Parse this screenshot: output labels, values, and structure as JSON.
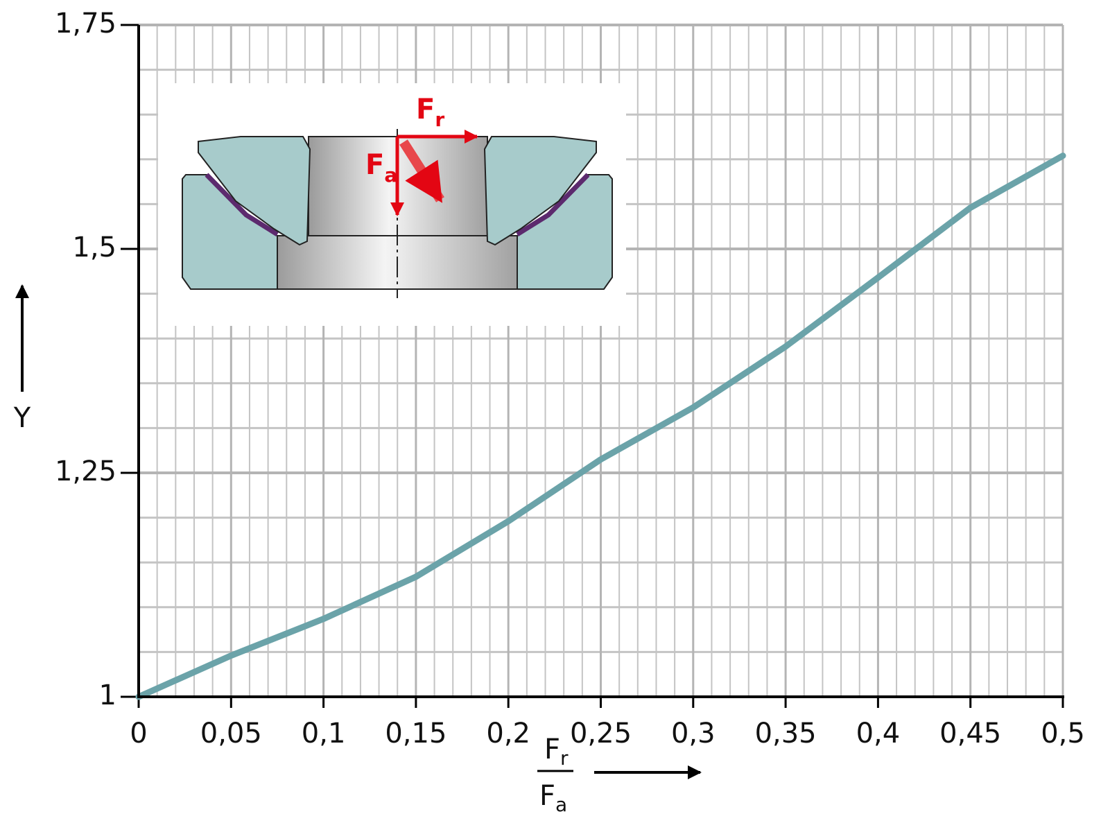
{
  "chart_data": {
    "type": "line",
    "ylabel": "Y",
    "xlabel": {
      "numerator": "F",
      "numerator_sub": "r",
      "denominator": "F",
      "denominator_sub": "a"
    },
    "inset_labels": [
      {
        "main": "F",
        "sub": "r"
      },
      {
        "main": "F",
        "sub": "a"
      }
    ],
    "x": [
      0,
      0.05,
      0.1,
      0.15,
      0.2,
      0.25,
      0.3,
      0.35,
      0.4,
      0.45,
      0.5
    ],
    "values": [
      1.0,
      1.046,
      1.087,
      1.134,
      1.196,
      1.265,
      1.323,
      1.391,
      1.468,
      1.546,
      1.604
    ],
    "color": "#6ba3a9",
    "xlim": [
      0,
      0.5
    ],
    "ylim": [
      1,
      1.75
    ],
    "xticks": [
      0,
      {
        "value": 0.05,
        "label": "0,05"
      },
      {
        "value": 0.1,
        "label": "0,1"
      },
      {
        "value": 0.15,
        "label": "0,15"
      },
      {
        "value": 0.2,
        "label": "0,2"
      },
      {
        "value": 0.25,
        "label": "0,25"
      },
      {
        "value": 0.3,
        "label": "0,3"
      },
      {
        "value": 0.35,
        "label": "0,35"
      },
      {
        "value": 0.4,
        "label": "0,4"
      },
      {
        "value": 0.45,
        "label": "0,45"
      },
      {
        "value": 0.5,
        "label": "0,5"
      }
    ],
    "yticks": [
      1,
      {
        "value": 1.25,
        "label": "1,25"
      },
      {
        "value": 1.5,
        "label": "1,5"
      },
      {
        "value": 1.75,
        "label": "1,75"
      }
    ],
    "grid": true
  }
}
